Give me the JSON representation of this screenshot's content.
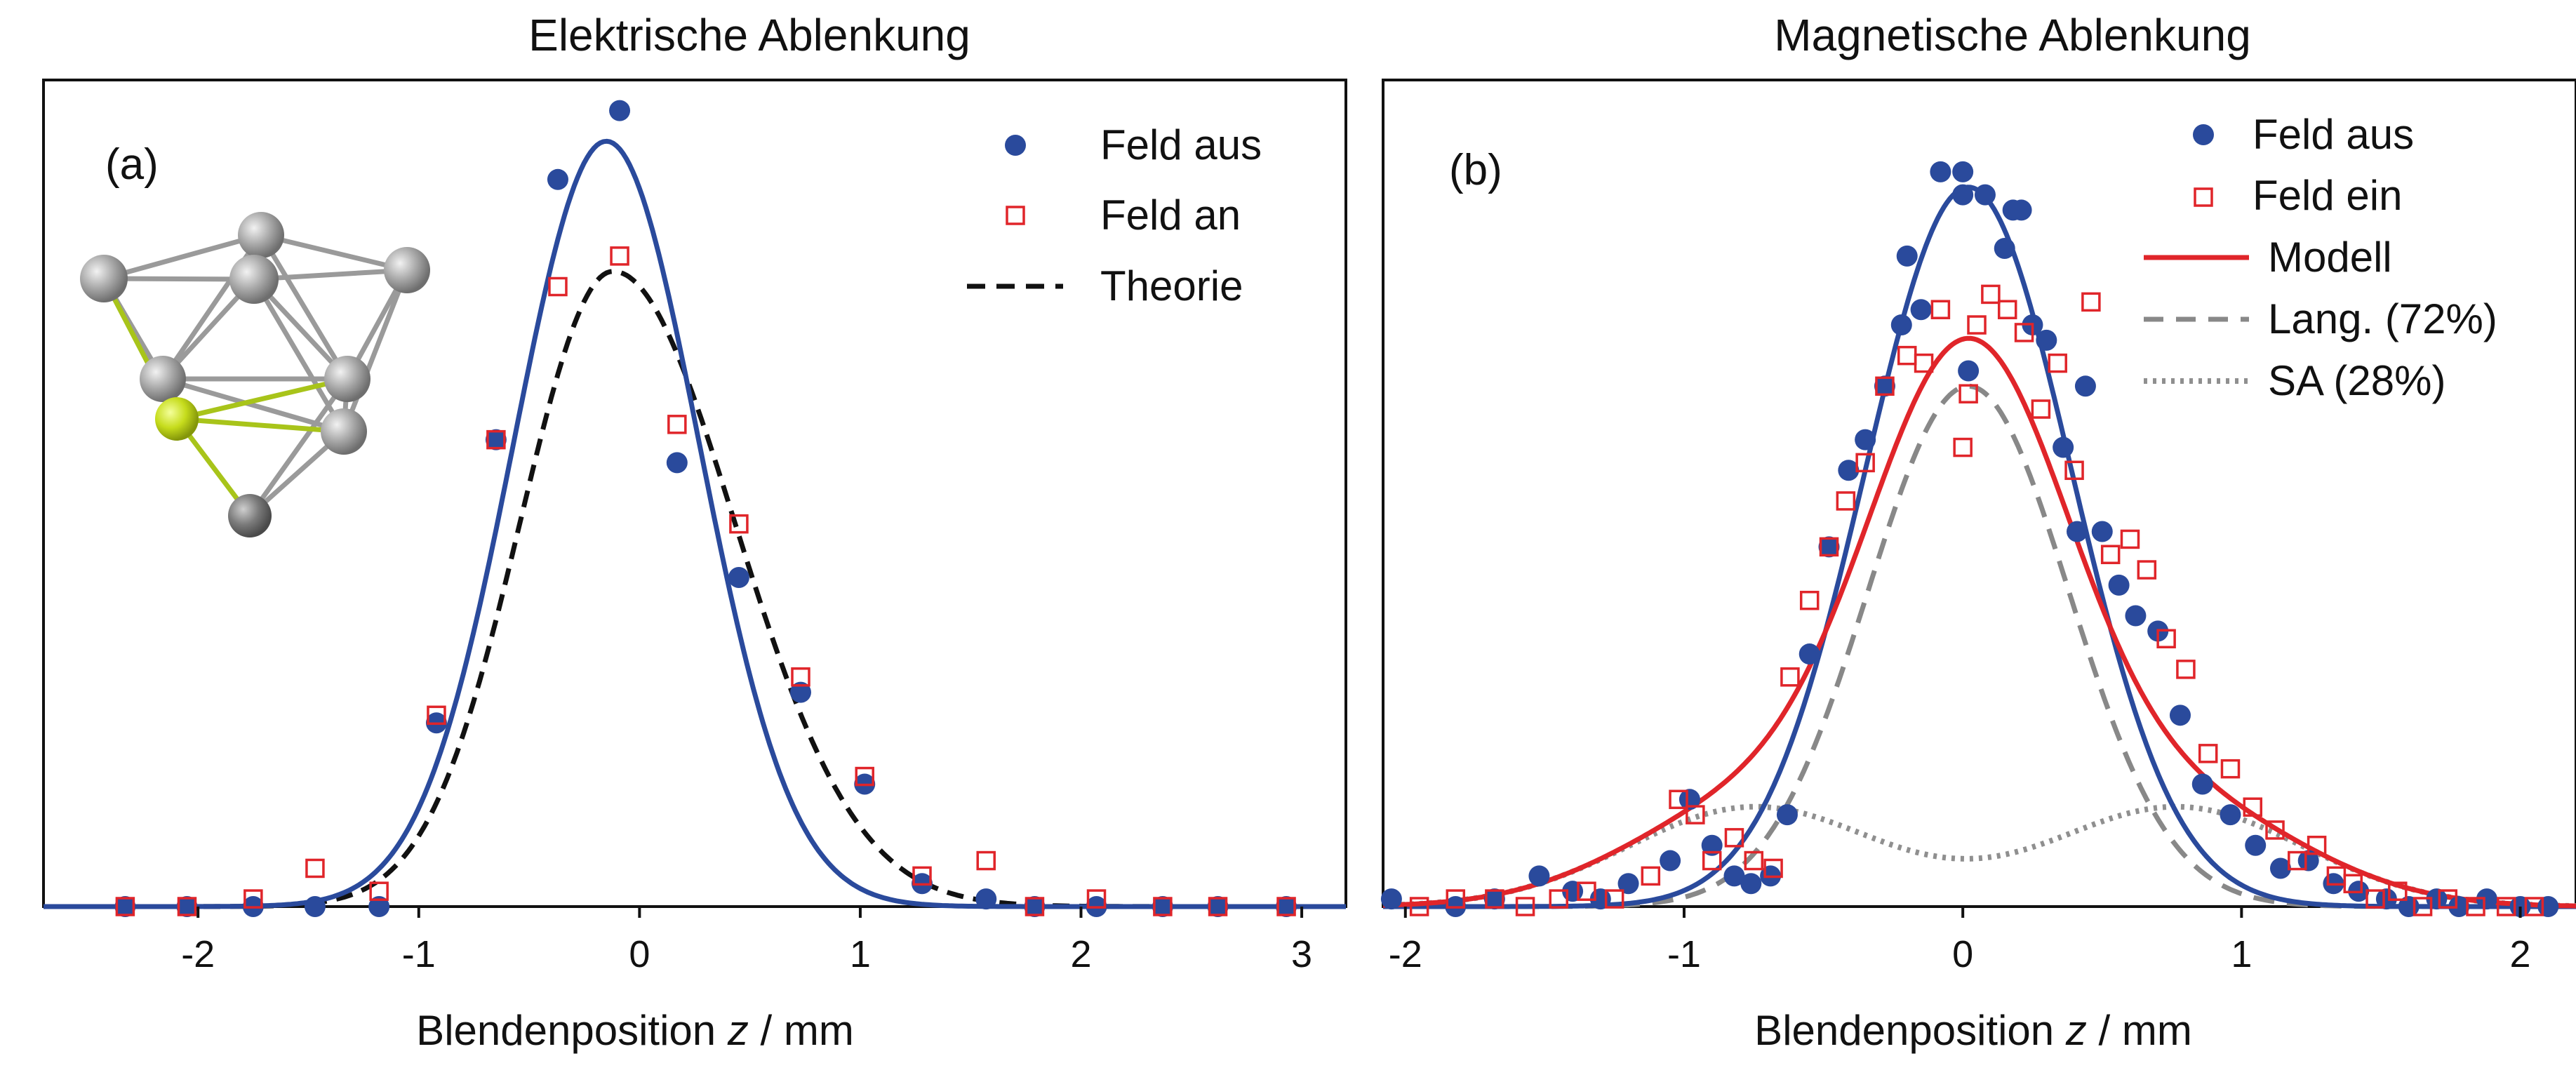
{
  "colors": {
    "blue": "#2a4a9c",
    "red": "#e0252a",
    "black": "#111111",
    "gray_dashed": "#888888",
    "gray_dotted": "#8f8f8f"
  },
  "chart_data": [
    {
      "type": "scatter",
      "panel_label": "(a)",
      "title": "Elektrische Ablenkung",
      "xlabel_prefix": "Blendenposition ",
      "xlabel_var": "z",
      "xlabel_suffix": " / mm",
      "ylabel": "",
      "xlim": [
        -2.7,
        3.2
      ],
      "ylim": [
        0,
        1.08
      ],
      "y_ticks_shown": false,
      "grid": false,
      "x_ticks": [
        -2,
        -1,
        0,
        1,
        2,
        3
      ],
      "x_tick_labels": [
        "-2",
        "-1",
        "0",
        "1",
        "2",
        "3"
      ],
      "legend_position": "top-right",
      "legend": [
        {
          "label": "Feld aus",
          "marker": "filled-circle",
          "color": "#2a4a9c"
        },
        {
          "label": "Feld an",
          "marker": "open-square",
          "color": "#e0252a"
        },
        {
          "label": "Theorie",
          "marker": "dashed-line",
          "color": "#111111"
        }
      ],
      "inset": "cluster-molecule-model",
      "series": [
        {
          "name": "Feld aus",
          "kind": "points",
          "marker": "filled-circle",
          "color": "#2a4a9c",
          "x": [
            -2.33,
            -2.05,
            -1.75,
            -1.47,
            -1.18,
            -0.92,
            -0.65,
            -0.37,
            -0.09,
            0.17,
            0.45,
            0.73,
            1.02,
            1.28,
            1.57,
            1.79,
            2.07,
            2.37,
            2.62,
            2.93
          ],
          "y": [
            0.0,
            0.0,
            0.0,
            0.0,
            0.0,
            0.24,
            0.61,
            0.95,
            1.04,
            0.58,
            0.43,
            0.28,
            0.16,
            0.03,
            0.01,
            0.0,
            0.0,
            0.0,
            0.0,
            0.0
          ]
        },
        {
          "name": "Feld an",
          "kind": "points",
          "marker": "open-square",
          "color": "#e0252a",
          "x": [
            -2.33,
            -2.05,
            -1.75,
            -1.47,
            -1.18,
            -0.92,
            -0.65,
            -0.37,
            -0.09,
            0.17,
            0.45,
            0.73,
            1.02,
            1.28,
            1.57,
            1.79,
            2.07,
            2.37,
            2.62,
            2.93
          ],
          "y": [
            0.0,
            0.0,
            0.01,
            0.05,
            0.02,
            0.25,
            0.61,
            0.81,
            0.85,
            0.63,
            0.5,
            0.3,
            0.17,
            0.04,
            0.06,
            0.0,
            0.01,
            0.0,
            0.0,
            0.0
          ]
        },
        {
          "name": "Gaussian fit (Feld aus)",
          "kind": "gaussian",
          "style": "solid",
          "color": "#2a4a9c",
          "amplitude": 1.0,
          "center": -0.15,
          "sigma": 0.42
        },
        {
          "name": "Theorie",
          "kind": "skewed-gaussian",
          "style": "dashed",
          "color": "#111111",
          "amplitude": 0.83,
          "center": -0.12,
          "sigma_left": 0.42,
          "sigma_right": 0.55
        }
      ]
    },
    {
      "type": "scatter",
      "panel_label": "(b)",
      "title": "Magnetische Ablenkung",
      "xlabel_prefix": "Blendenposition ",
      "xlabel_var": "z",
      "xlabel_suffix": " / mm",
      "ylabel": "",
      "xlim": [
        -2.08,
        2.2
      ],
      "ylim": [
        0,
        1.08
      ],
      "y_ticks_shown": false,
      "grid": false,
      "x_ticks": [
        -2,
        -1,
        0,
        1,
        2
      ],
      "x_tick_labels": [
        "-2",
        "-1",
        "0",
        "1",
        "2"
      ],
      "legend_position": "top-right",
      "legend": [
        {
          "label": "Feld aus",
          "marker": "filled-circle",
          "color": "#2a4a9c"
        },
        {
          "label": "Feld ein",
          "marker": "open-square",
          "color": "#e0252a"
        },
        {
          "label": "Modell",
          "marker": "solid-line",
          "color": "#e0252a"
        },
        {
          "label": "Lang. (72%)",
          "marker": "dashed-line",
          "color": "#888888"
        },
        {
          "label": "SA (28%)",
          "marker": "dotted-line",
          "color": "#8f8f8f"
        }
      ],
      "series": [
        {
          "name": "Feld aus",
          "kind": "points",
          "marker": "filled-circle",
          "color": "#2a4a9c",
          "x": [
            -2.05,
            -1.82,
            -1.68,
            -1.52,
            -1.4,
            -1.3,
            -1.2,
            -1.05,
            -0.98,
            -0.9,
            -0.82,
            -0.76,
            -0.69,
            -0.63,
            -0.55,
            -0.48,
            -0.41,
            -0.35,
            -0.28,
            -0.22,
            -0.2,
            -0.15,
            -0.08,
            0.0,
            0.0,
            0.02,
            0.08,
            0.15,
            0.18,
            0.21,
            0.25,
            0.3,
            0.36,
            0.41,
            0.44,
            0.5,
            0.56,
            0.62,
            0.7,
            0.78,
            0.86,
            0.96,
            1.05,
            1.14,
            1.24,
            1.33,
            1.42,
            1.52,
            1.6,
            1.7,
            1.78,
            1.88,
            2.0,
            2.1
          ],
          "y": [
            0.01,
            0.0,
            0.01,
            0.04,
            0.02,
            0.01,
            0.03,
            0.06,
            0.14,
            0.08,
            0.04,
            0.03,
            0.04,
            0.12,
            0.33,
            0.47,
            0.57,
            0.61,
            0.68,
            0.76,
            0.85,
            0.78,
            0.96,
            0.96,
            0.93,
            0.7,
            0.93,
            0.86,
            0.91,
            0.91,
            0.76,
            0.74,
            0.6,
            0.49,
            0.68,
            0.49,
            0.42,
            0.38,
            0.36,
            0.25,
            0.16,
            0.12,
            0.08,
            0.05,
            0.06,
            0.03,
            0.02,
            0.01,
            0.0,
            0.01,
            0.0,
            0.01,
            0.0,
            0.0
          ]
        },
        {
          "name": "Feld ein",
          "kind": "points",
          "marker": "open-square",
          "color": "#e0252a",
          "x": [
            -1.95,
            -1.82,
            -1.68,
            -1.57,
            -1.45,
            -1.35,
            -1.25,
            -1.12,
            -1.02,
            -0.96,
            -0.9,
            -0.82,
            -0.75,
            -0.68,
            -0.62,
            -0.55,
            -0.48,
            -0.42,
            -0.35,
            -0.28,
            -0.2,
            -0.14,
            -0.08,
            0.02,
            0.0,
            0.05,
            0.1,
            0.16,
            0.22,
            0.28,
            0.34,
            0.4,
            0.46,
            0.53,
            0.6,
            0.66,
            0.73,
            0.8,
            0.88,
            0.96,
            1.04,
            1.12,
            1.2,
            1.27,
            1.34,
            1.4,
            1.48,
            1.56,
            1.65,
            1.74,
            1.84,
            1.95,
            2.05
          ],
          "y": [
            0.0,
            0.01,
            0.01,
            0.0,
            0.01,
            0.02,
            0.01,
            0.04,
            0.14,
            0.12,
            0.06,
            0.09,
            0.06,
            0.05,
            0.3,
            0.4,
            0.47,
            0.53,
            0.58,
            0.68,
            0.72,
            0.71,
            0.78,
            0.67,
            0.6,
            0.76,
            0.8,
            0.78,
            0.75,
            0.65,
            0.71,
            0.57,
            0.79,
            0.46,
            0.48,
            0.44,
            0.35,
            0.31,
            0.2,
            0.18,
            0.13,
            0.1,
            0.06,
            0.08,
            0.04,
            0.03,
            0.01,
            0.02,
            0.0,
            0.01,
            0.0,
            0.0,
            0.0
          ]
        },
        {
          "name": "Feld aus Gaussian",
          "kind": "gaussian",
          "style": "solid",
          "color": "#2a4a9c",
          "amplitude": 0.94,
          "center": 0.02,
          "sigma": 0.37
        },
        {
          "name": "Modell",
          "kind": "sum",
          "style": "solid",
          "color": "#e0252a",
          "components": [
            "Lang. (72%)",
            "SA (28%)"
          ]
        },
        {
          "name": "Lang. (72%)",
          "kind": "gaussian",
          "style": "dashed",
          "color": "#888888",
          "amplitude": 0.68,
          "center": 0.02,
          "sigma": 0.36
        },
        {
          "name": "SA (28%)",
          "kind": "double-gaussian",
          "style": "dotted",
          "color": "#8f8f8f",
          "amplitude": 0.13,
          "centers": [
            -0.75,
            0.77
          ],
          "sigma": 0.45
        }
      ]
    }
  ]
}
